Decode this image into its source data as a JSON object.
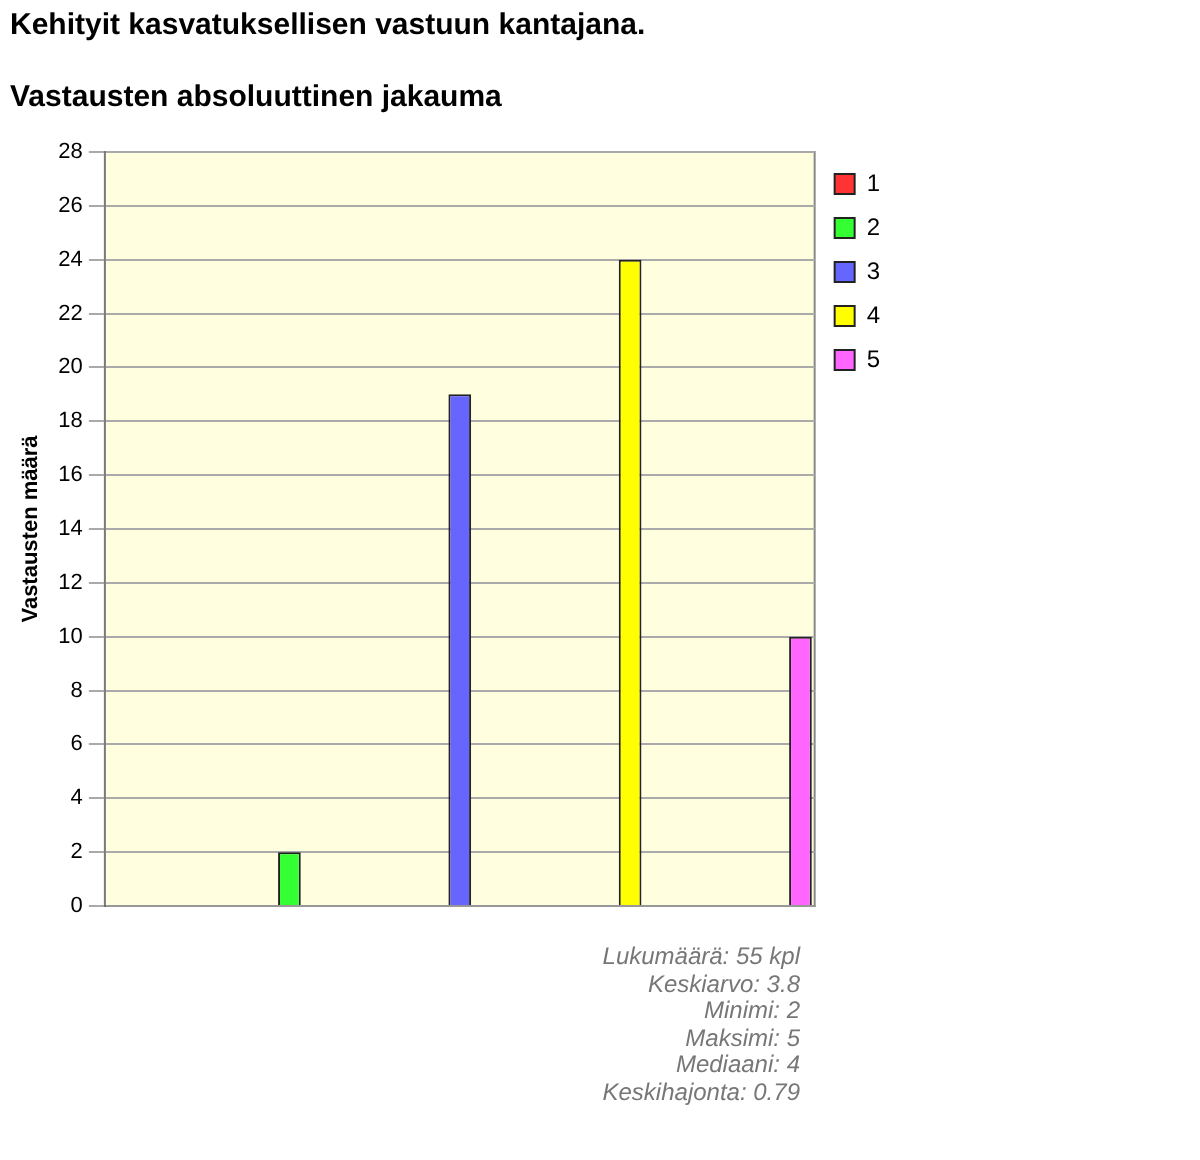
{
  "chart_data": {
    "type": "bar",
    "title": "Kehityit kasvatuksellisen vastuun kantajana.",
    "subtitle": "Vastausten absoluuttinen jakauma",
    "ylabel": "Vastausten määrä",
    "categories": [
      null,
      null,
      null,
      null,
      null
    ],
    "series": [
      {
        "name": "1",
        "color": "#ff3333",
        "values": [
          0,
          null,
          null,
          null,
          null
        ]
      },
      {
        "name": "2",
        "color": "#33ff33",
        "values": [
          null,
          2,
          null,
          null,
          null
        ]
      },
      {
        "name": "3",
        "color": "#6666ff",
        "values": [
          null,
          null,
          19,
          null,
          null
        ]
      },
      {
        "name": "4",
        "color": "#ffff00",
        "values": [
          null,
          null,
          null,
          24,
          null
        ]
      },
      {
        "name": "5",
        "color": "#ff66ff",
        "values": [
          null,
          null,
          null,
          null,
          10
        ]
      }
    ],
    "ylim": [
      0,
      28
    ],
    "yticks": [
      0,
      2,
      4,
      6,
      8,
      10,
      12,
      14,
      16,
      18,
      20,
      22,
      24,
      26,
      28
    ],
    "grid": "y",
    "legend": "top right",
    "annotations": [
      "Lukumäärä: 55 kpl",
      "Keskiarvo: 3.8",
      "Minimi: 2",
      "Maksimi: 5",
      "Mediaani: 4",
      "Keskihajonta: 0.79"
    ]
  }
}
